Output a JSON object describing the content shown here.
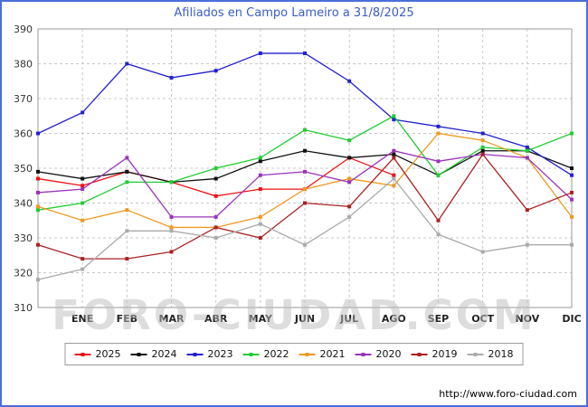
{
  "title": "Afiliados en Campo Lameiro a 31/8/2025",
  "watermark": "FORO-CIUDAD.COM",
  "footer_url": "http://www.foro-ciudad.com",
  "colors": {
    "frame_border": "#4a6fd8",
    "title_text": "#3a5cc8",
    "gridline": "#c8c8c8",
    "plot_border": "#999999"
  },
  "chart_data": {
    "type": "line",
    "title": "Afiliados en Campo Lameiro a 31/8/2025",
    "xlabel": "",
    "ylabel": "",
    "ylim": [
      310,
      390
    ],
    "ytick_step": 10,
    "grid": true,
    "legend_position": "bottom",
    "months": [
      "ENE",
      "FEB",
      "MAR",
      "ABR",
      "MAY",
      "JUN",
      "JUL",
      "AGO",
      "SEP",
      "OCT",
      "NOV",
      "DIC"
    ],
    "note": "values[0] is the starting point on the y-axis; values[i] aligns with months[i-1]. 2025 series ends at AGO (data to 31/8/2025).",
    "series": [
      {
        "name": "2025",
        "color": "#ee1111",
        "values": [
          347,
          345,
          349,
          346,
          342,
          344,
          344,
          353,
          348
        ]
      },
      {
        "name": "2024",
        "color": "#111111",
        "values": [
          349,
          347,
          349,
          346,
          347,
          352,
          355,
          353,
          354,
          348,
          355,
          355,
          350
        ]
      },
      {
        "name": "2023",
        "color": "#2222cc",
        "values": [
          360,
          366,
          380,
          376,
          378,
          383,
          383,
          375,
          364,
          362,
          360,
          356,
          348
        ]
      },
      {
        "name": "2022",
        "color": "#22cc33",
        "values": [
          338,
          340,
          346,
          346,
          350,
          353,
          361,
          358,
          365,
          348,
          356,
          355,
          360
        ]
      },
      {
        "name": "2021",
        "color": "#ee9922",
        "values": [
          339,
          335,
          338,
          333,
          333,
          336,
          344,
          347,
          345,
          360,
          358,
          353,
          336
        ]
      },
      {
        "name": "2020",
        "color": "#9933bb",
        "values": [
          343,
          344,
          353,
          336,
          336,
          348,
          349,
          346,
          355,
          352,
          354,
          353,
          341
        ]
      },
      {
        "name": "2019",
        "color": "#aa2222",
        "values": [
          328,
          324,
          324,
          326,
          333,
          330,
          340,
          339,
          353,
          335,
          354,
          338,
          343
        ]
      },
      {
        "name": "2018",
        "color": "#aaaaaa",
        "values": [
          318,
          321,
          332,
          332,
          330,
          334,
          328,
          336,
          347,
          331,
          326,
          328,
          328
        ]
      }
    ]
  }
}
